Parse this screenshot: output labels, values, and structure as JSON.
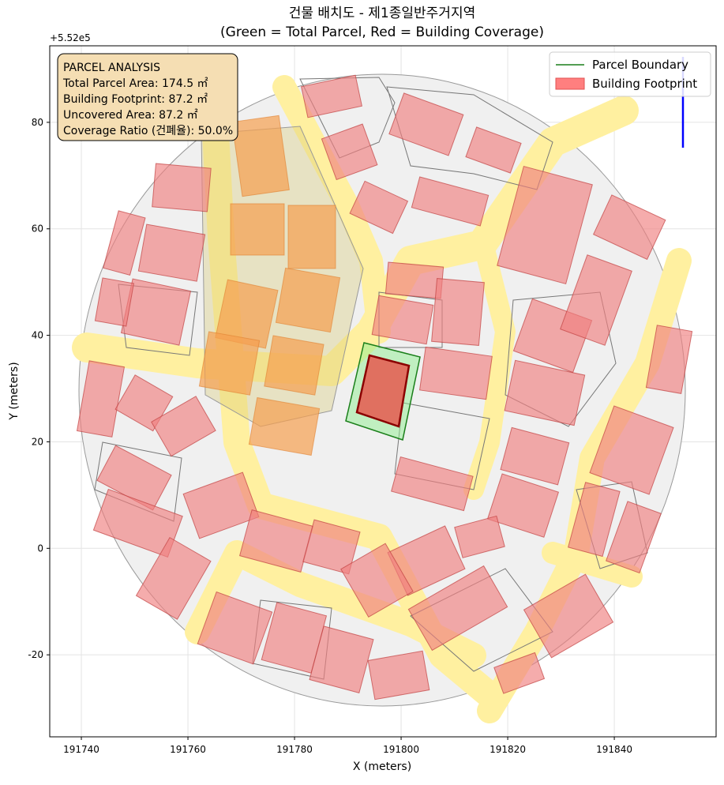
{
  "chart_data": {
    "type": "map",
    "title": "건물 배치도 - 제1종일반주거지역",
    "subtitle": "(Green = Total Parcel, Red = Building Coverage)",
    "xlabel": "X (meters)",
    "ylabel": "Y (meters)",
    "y_offset": "+5.52e5",
    "xlim": [
      191734.07,
      191859.1
    ],
    "xticks": [
      191740,
      191760,
      191780,
      191800,
      191820,
      191840
    ],
    "ylim": [
      -35.4,
      94.37
    ],
    "yticks": [
      -20,
      0,
      20,
      40,
      60,
      80
    ],
    "grid": true,
    "legend_position": "upper right",
    "legend": [
      {
        "name": "Parcel Boundary",
        "color": "#1a7f1a"
      },
      {
        "name": "Building Footprint",
        "color": "#ff7f7f"
      }
    ],
    "annotation": [
      "PARCEL ANALYSIS",
      "Total Parcel Area: 174.5 ㎡",
      "Building Footprint: 87.2 ㎡",
      "Uncovered Area: 87.2 ㎡",
      "Coverage Ratio (건폐율): 50.0%"
    ]
  }
}
